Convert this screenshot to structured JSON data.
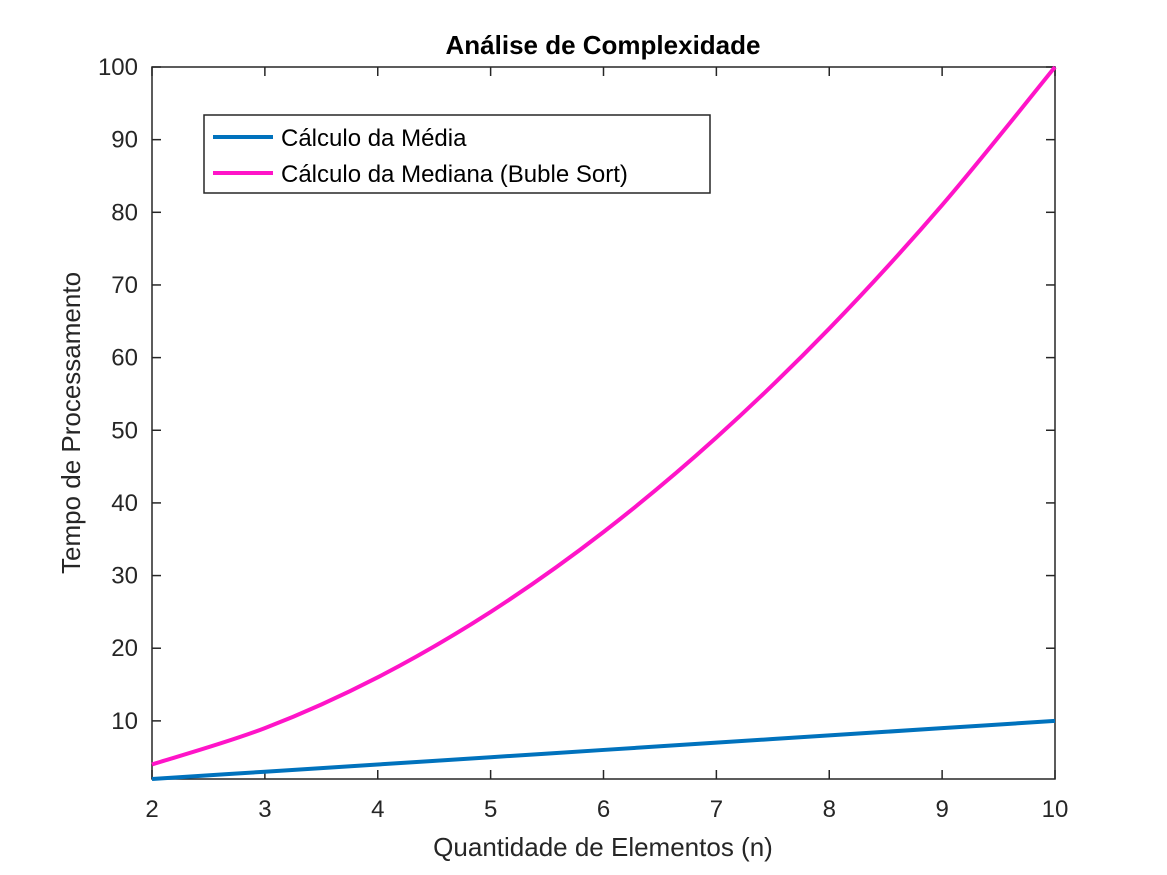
{
  "chart_data": {
    "type": "line",
    "title": "Análise de Complexidade",
    "xlabel": "Quantidade de Elementos (n)",
    "ylabel": "Tempo de Processamento",
    "xlim": [
      2,
      10
    ],
    "ylim": [
      2,
      100
    ],
    "xticks": [
      2,
      3,
      4,
      5,
      6,
      7,
      8,
      9,
      10
    ],
    "yticks": [
      10,
      20,
      30,
      40,
      50,
      60,
      70,
      80,
      90,
      100
    ],
    "grid": false,
    "legend_position": "top-left",
    "x": [
      2,
      3,
      4,
      5,
      6,
      7,
      8,
      9,
      10
    ],
    "series": [
      {
        "name": "Cálculo da Média",
        "color": "#0072BD",
        "values": [
          2,
          3,
          4,
          5,
          6,
          7,
          8,
          9,
          10
        ]
      },
      {
        "name": "Cálculo da Mediana (Buble Sort)",
        "color": "#FF14C8",
        "values": [
          4,
          9,
          16,
          25,
          36,
          49,
          64,
          81,
          100
        ]
      }
    ]
  }
}
